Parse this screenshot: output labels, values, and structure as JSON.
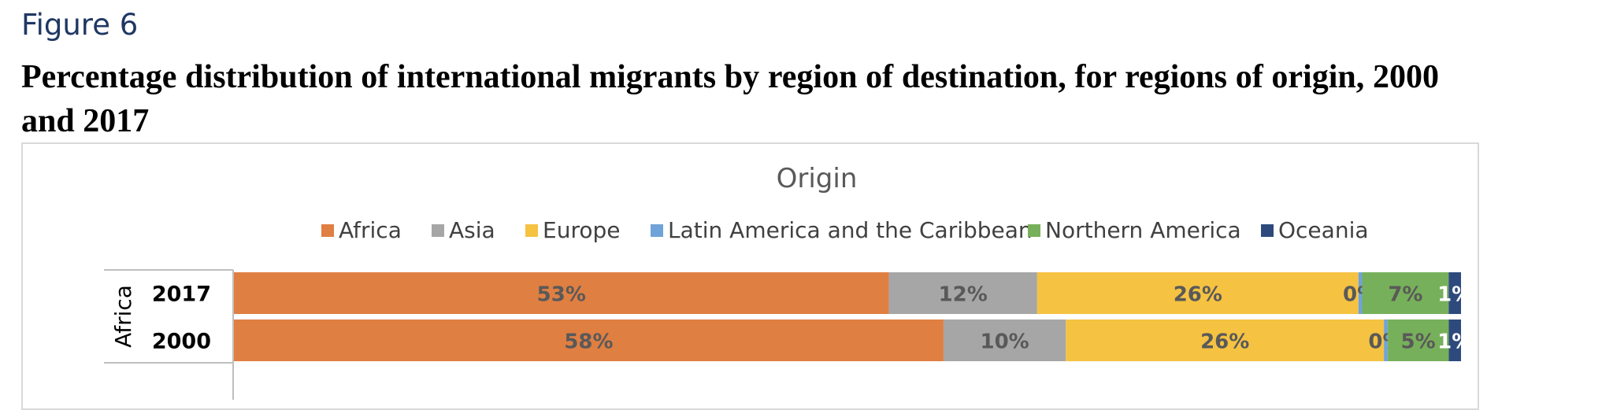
{
  "figure_label": "Figure 6",
  "figure_title": "Percentage distribution of international migrants by region of destination, for regions of origin, 2000 and 2017",
  "chart_data": {
    "type": "bar",
    "orientation": "horizontal",
    "stacked": "percent",
    "title": "Origin",
    "legend_position": "top",
    "group": "Africa",
    "categories": [
      "2017",
      "2000"
    ],
    "series": [
      {
        "name": "Africa",
        "color": "#e07f42",
        "values": [
          53,
          58
        ],
        "labels": [
          "53%",
          "58%"
        ]
      },
      {
        "name": "Asia",
        "color": "#a6a6a6",
        "values": [
          12,
          10
        ],
        "labels": [
          "12%",
          "10%"
        ]
      },
      {
        "name": "Europe",
        "color": "#f5c242",
        "values": [
          26,
          26
        ],
        "labels": [
          "26%",
          "26%"
        ]
      },
      {
        "name": "Latin America and the Caribbean",
        "color": "#6fa3d9",
        "values": [
          0.3,
          0.3
        ],
        "labels": [
          "0%",
          "0%"
        ]
      },
      {
        "name": "Northern America",
        "color": "#77b05a",
        "values": [
          7,
          5
        ],
        "labels": [
          "7%",
          "5%"
        ]
      },
      {
        "name": "Oceania",
        "color": "#2e4a7d",
        "values": [
          1,
          1
        ],
        "labels": [
          "1%",
          "1%"
        ]
      }
    ]
  }
}
